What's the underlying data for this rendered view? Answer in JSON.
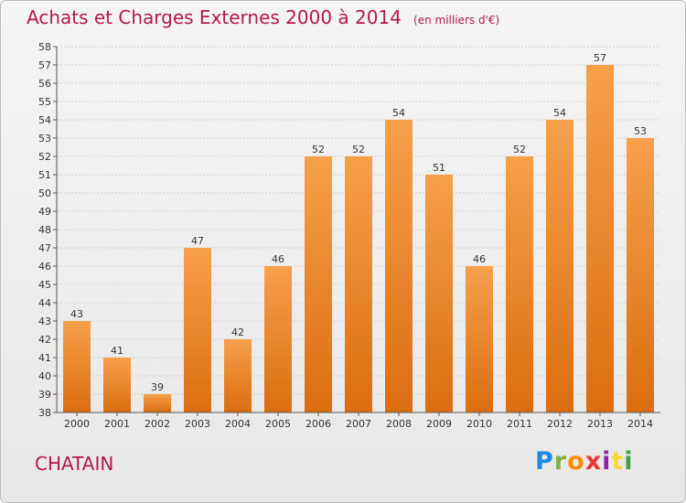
{
  "title": "Achats et Charges Externes 2000 à 2014",
  "unit_note": "(en milliers d'€)",
  "commune": "CHATAIN",
  "logo": {
    "letters": [
      "P",
      "r",
      "o",
      "x",
      "i",
      "t",
      "i"
    ],
    "colors": [
      "#1e88e5",
      "#7cb342",
      "#fb8c00",
      "#e53935",
      "#8e24aa",
      "#fdd835",
      "#43a047"
    ]
  },
  "colors": {
    "bar_top": "#f7a04a",
    "bar_bottom": "#db6d10",
    "title": "#b3184e",
    "grid": "#cfcfcf"
  },
  "chart_data": {
    "type": "bar",
    "categories": [
      "2000",
      "2001",
      "2002",
      "2003",
      "2004",
      "2005",
      "2006",
      "2007",
      "2008",
      "2009",
      "2010",
      "2011",
      "2012",
      "2013",
      "2014"
    ],
    "values": [
      43,
      41,
      39,
      47,
      42,
      46,
      52,
      52,
      54,
      51,
      46,
      52,
      54,
      57,
      53
    ],
    "ylim": [
      38,
      58
    ],
    "yticks": [
      38,
      39,
      40,
      41,
      42,
      43,
      44,
      45,
      46,
      47,
      48,
      49,
      50,
      51,
      52,
      53,
      54,
      55,
      56,
      57,
      58
    ],
    "grid": true,
    "title": "Achats et Charges Externes 2000 à 2014",
    "xlabel": "",
    "ylabel": ""
  }
}
